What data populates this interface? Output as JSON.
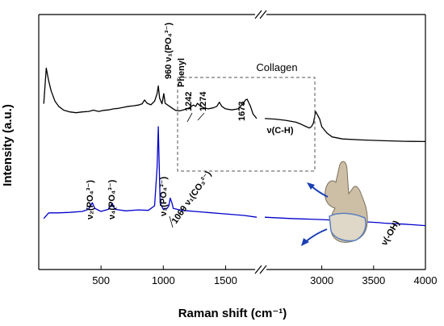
{
  "chart_data": {
    "type": "line",
    "xlabel": "Raman shift (cm⁻¹)",
    "ylabel": "Intensity (a.u.)",
    "broken_x_axis": true,
    "x_segments": [
      {
        "range": [
          0,
          1750
        ],
        "ticks": [
          500,
          1000,
          1500
        ]
      },
      {
        "range": [
          2450,
          4000
        ],
        "ticks": [
          3000,
          3500,
          4000
        ]
      }
    ],
    "y_ticks": "none",
    "legend": "none",
    "series": [
      {
        "color": "#000000",
        "points": [
          [
            40,
            0.65
          ],
          [
            60,
            0.79
          ],
          [
            80,
            0.74
          ],
          [
            100,
            0.7
          ],
          [
            130,
            0.66
          ],
          [
            160,
            0.64
          ],
          [
            200,
            0.625
          ],
          [
            250,
            0.618
          ],
          [
            300,
            0.615
          ],
          [
            350,
            0.618
          ],
          [
            400,
            0.62
          ],
          [
            440,
            0.625
          ],
          [
            480,
            0.62
          ],
          [
            520,
            0.624
          ],
          [
            560,
            0.626
          ],
          [
            600,
            0.63
          ],
          [
            640,
            0.632
          ],
          [
            680,
            0.636
          ],
          [
            720,
            0.64
          ],
          [
            760,
            0.642
          ],
          [
            800,
            0.645
          ],
          [
            830,
            0.65
          ],
          [
            850,
            0.665
          ],
          [
            870,
            0.652
          ],
          [
            900,
            0.646
          ],
          [
            930,
            0.66
          ],
          [
            950,
            0.69
          ],
          [
            960,
            0.72
          ],
          [
            970,
            0.672
          ],
          [
            990,
            0.65
          ],
          [
            1004,
            0.69
          ],
          [
            1015,
            0.652
          ],
          [
            1050,
            0.64
          ],
          [
            1080,
            0.63
          ],
          [
            1100,
            0.624
          ],
          [
            1130,
            0.622
          ],
          [
            1160,
            0.626
          ],
          [
            1200,
            0.632
          ],
          [
            1242,
            0.645
          ],
          [
            1260,
            0.64
          ],
          [
            1274,
            0.652
          ],
          [
            1300,
            0.64
          ],
          [
            1330,
            0.634
          ],
          [
            1360,
            0.63
          ],
          [
            1400,
            0.634
          ],
          [
            1430,
            0.64
          ],
          [
            1450,
            0.656
          ],
          [
            1470,
            0.64
          ],
          [
            1500,
            0.63
          ],
          [
            1550,
            0.626
          ],
          [
            1600,
            0.63
          ],
          [
            1640,
            0.65
          ],
          [
            1660,
            0.665
          ],
          [
            1673,
            0.668
          ],
          [
            1700,
            0.64
          ],
          [
            1720,
            0.61
          ],
          [
            1750,
            0.592
          ],
          [
            2450,
            0.592
          ],
          [
            2550,
            0.59
          ],
          [
            2650,
            0.585
          ],
          [
            2750,
            0.578
          ],
          [
            2800,
            0.57
          ],
          [
            2850,
            0.56
          ],
          [
            2880,
            0.555
          ],
          [
            2900,
            0.56
          ],
          [
            2920,
            0.575
          ],
          [
            2940,
            0.62
          ],
          [
            2960,
            0.605
          ],
          [
            2980,
            0.59
          ],
          [
            3000,
            0.56
          ],
          [
            3050,
            0.535
          ],
          [
            3100,
            0.52
          ],
          [
            3200,
            0.512
          ],
          [
            3400,
            0.508
          ],
          [
            3600,
            0.505
          ],
          [
            3800,
            0.503
          ],
          [
            4000,
            0.502
          ]
        ]
      },
      {
        "color": "#0000cc",
        "points": [
          [
            40,
            0.2
          ],
          [
            80,
            0.222
          ],
          [
            150,
            0.222
          ],
          [
            250,
            0.224
          ],
          [
            350,
            0.228
          ],
          [
            400,
            0.236
          ],
          [
            430,
            0.262
          ],
          [
            450,
            0.24
          ],
          [
            500,
            0.228
          ],
          [
            560,
            0.236
          ],
          [
            590,
            0.26
          ],
          [
            610,
            0.236
          ],
          [
            700,
            0.23
          ],
          [
            800,
            0.234
          ],
          [
            880,
            0.232
          ],
          [
            930,
            0.25
          ],
          [
            950,
            0.4
          ],
          [
            960,
            0.56
          ],
          [
            965,
            0.45
          ],
          [
            975,
            0.26
          ],
          [
            1000,
            0.236
          ],
          [
            1030,
            0.24
          ],
          [
            1045,
            0.25
          ],
          [
            1055,
            0.28
          ],
          [
            1069,
            0.262
          ],
          [
            1080,
            0.24
          ],
          [
            1150,
            0.232
          ],
          [
            1300,
            0.226
          ],
          [
            1500,
            0.218
          ],
          [
            1650,
            0.212
          ],
          [
            1750,
            0.205
          ],
          [
            2450,
            0.205
          ],
          [
            2700,
            0.2
          ],
          [
            3000,
            0.196
          ],
          [
            3300,
            0.19
          ],
          [
            3550,
            0.184
          ],
          [
            3600,
            0.182
          ],
          [
            3800,
            0.178
          ],
          [
            4000,
            0.172
          ]
        ]
      }
    ],
    "annotations": [
      {
        "text": "960 ν₁(PO₄³⁻)",
        "x": 960
      },
      {
        "text": "Phenyl",
        "x": 1004
      },
      {
        "text": "1242",
        "x": 1242
      },
      {
        "text": "1274",
        "x": 1274
      },
      {
        "text": "1673",
        "x": 1673
      },
      {
        "text": "ν(C-H)",
        "x": 2940
      },
      {
        "text": "ν₂(PO₄³⁻)",
        "x": 430
      },
      {
        "text": "ν₄(PO₄³⁻)",
        "x": 590
      },
      {
        "text": "ν₃(PO₄³⁻)",
        "x": 1045
      },
      {
        "text": "1069 ν₁(CO₃²⁻)",
        "x": 1069
      },
      {
        "text": "ν(-OH)",
        "x": 3600
      }
    ],
    "collagen_box": {
      "label": "Collagen",
      "x_range": [
        1200,
        3100
      ]
    }
  }
}
